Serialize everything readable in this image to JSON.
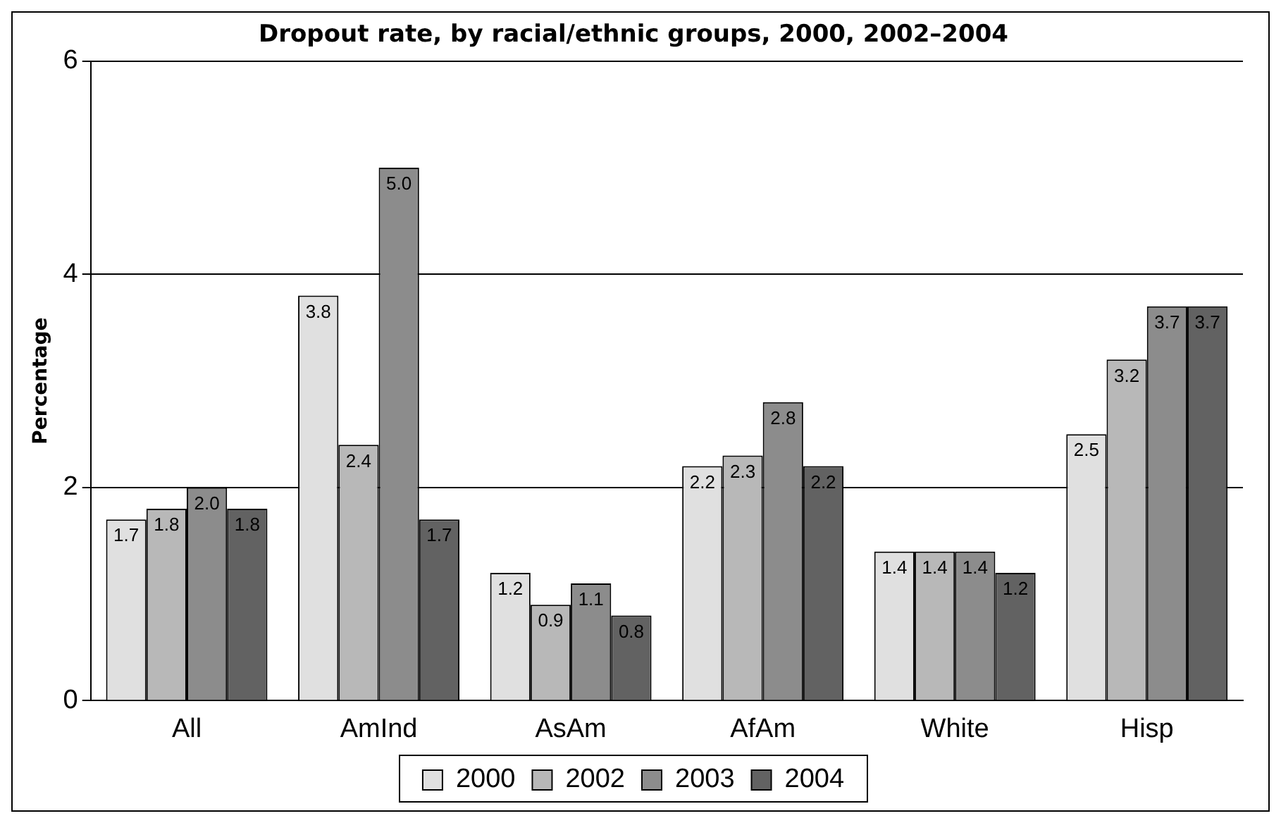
{
  "chart_data": {
    "type": "bar",
    "title": "Dropout rate, by racial/ethnic groups, 2000, 2002–2004",
    "ylabel": "Percentage",
    "categories": [
      "All",
      "AmInd",
      "AsAm",
      "AfAm",
      "White",
      "Hisp"
    ],
    "series": [
      {
        "name": "2000",
        "color": "#e0e0e0",
        "values": [
          1.7,
          3.8,
          1.2,
          2.2,
          1.4,
          2.5
        ],
        "value_labels": [
          "1.7",
          "3.8",
          "1.2",
          "2.2",
          "1.4",
          "2.5"
        ]
      },
      {
        "name": "2002",
        "color": "#b8b8b8",
        "values": [
          1.8,
          2.4,
          0.9,
          2.3,
          1.4,
          3.2
        ],
        "value_labels": [
          "1.8",
          "2.4",
          "0.9",
          "2.3",
          "1.4",
          "3.2"
        ]
      },
      {
        "name": "2003",
        "color": "#8c8c8c",
        "values": [
          2.0,
          5.0,
          1.1,
          2.8,
          1.4,
          3.7
        ],
        "value_labels": [
          "2.0",
          "5.0",
          "1.1",
          "2.8",
          "1.4",
          "3.7"
        ]
      },
      {
        "name": "2004",
        "color": "#626262",
        "values": [
          1.8,
          1.7,
          0.8,
          2.2,
          1.2,
          3.7
        ],
        "value_labels": [
          "1.8",
          "1.7",
          "0.8",
          "2.2",
          "1.2",
          "3.7"
        ]
      }
    ],
    "ylim": [
      0,
      6
    ],
    "yticks": [
      0,
      2,
      4,
      6
    ],
    "grid": "y",
    "legend": "bottom"
  }
}
